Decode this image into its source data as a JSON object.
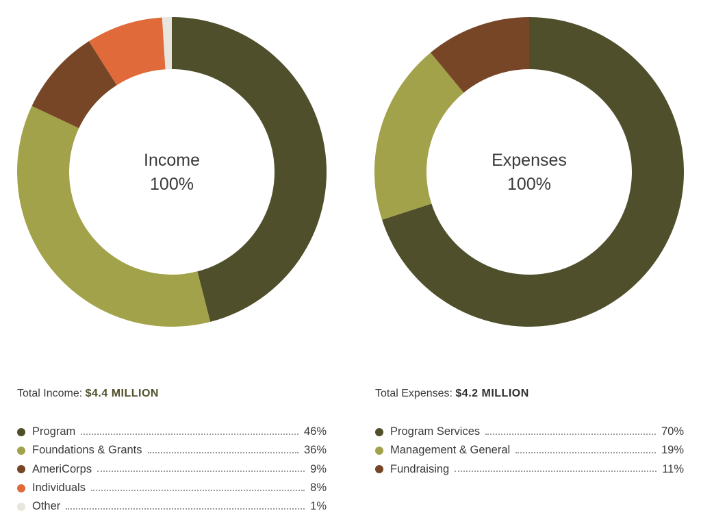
{
  "chart_data": [
    {
      "type": "pie",
      "center_label": "Income",
      "center_value": "100%",
      "total_label": "Total Income:",
      "total_value": "$4.4 MILLION",
      "categories": [
        "Program",
        "Foundations & Grants",
        "AmeriCorps",
        "Individuals",
        "Other"
      ],
      "values": [
        46,
        36,
        9,
        8,
        1
      ],
      "value_labels": [
        "46%",
        "36%",
        "9%",
        "8%",
        "1%"
      ],
      "colors": [
        "#4f4f2c",
        "#a2a24a",
        "#764626",
        "#e06a3a",
        "#e9e6df"
      ],
      "legend_position": "bottom"
    },
    {
      "type": "pie",
      "center_label": "Expenses",
      "center_value": "100%",
      "total_label": "Total Expenses:",
      "total_value": "$4.2 MILLION",
      "categories": [
        "Program Services",
        "Management & General",
        "Fundraising"
      ],
      "values": [
        70,
        19,
        11
      ],
      "value_labels": [
        "70%",
        "19%",
        "11%"
      ],
      "colors": [
        "#4f4f2c",
        "#a2a24a",
        "#764626"
      ],
      "legend_position": "bottom"
    }
  ]
}
